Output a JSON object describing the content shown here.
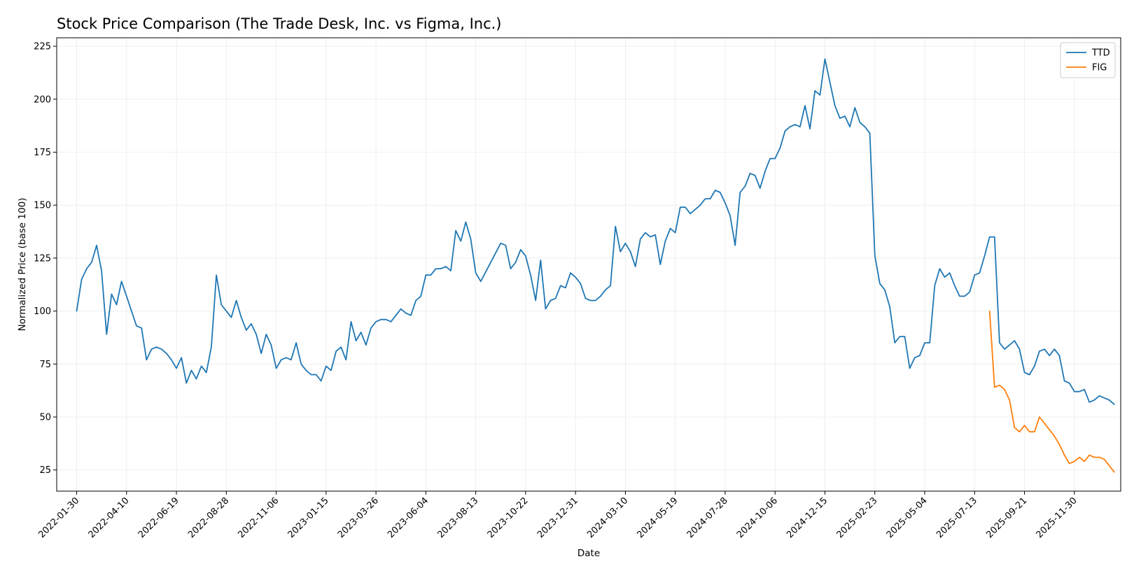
{
  "chart_data": {
    "type": "line",
    "title": "Stock Price Comparison (The Trade Desk, Inc. vs Figma, Inc.)",
    "xlabel": "Date",
    "ylabel": "Normalized Price (base 100)",
    "x_range": [
      "2022-01-02",
      "2026-02-03"
    ],
    "ylim": [
      15,
      229
    ],
    "grid": true,
    "legend_position": "top-right",
    "x_ticks": [
      "2022-01-30",
      "2022-04-10",
      "2022-06-19",
      "2022-08-28",
      "2022-11-06",
      "2023-01-15",
      "2023-03-26",
      "2023-06-04",
      "2023-08-13",
      "2023-10-22",
      "2023-12-31",
      "2024-03-10",
      "2024-05-19",
      "2024-07-28",
      "2024-10-06",
      "2024-12-15",
      "2025-02-23",
      "2025-05-04",
      "2025-07-13",
      "2025-09-21",
      "2025-11-30"
    ],
    "y_ticks": [
      25,
      50,
      75,
      100,
      125,
      150,
      175,
      200,
      225
    ],
    "series": [
      {
        "name": "TTD",
        "color": "#1f77b4",
        "points": [
          [
            "2022-01-30",
            100
          ],
          [
            "2022-02-06",
            115
          ],
          [
            "2022-02-13",
            120
          ],
          [
            "2022-02-20",
            123
          ],
          [
            "2022-02-27",
            131
          ],
          [
            "2022-03-06",
            119
          ],
          [
            "2022-03-13",
            89
          ],
          [
            "2022-03-20",
            108
          ],
          [
            "2022-03-27",
            103
          ],
          [
            "2022-04-03",
            114
          ],
          [
            "2022-04-10",
            107
          ],
          [
            "2022-04-17",
            100
          ],
          [
            "2022-04-24",
            93
          ],
          [
            "2022-05-01",
            92
          ],
          [
            "2022-05-08",
            77
          ],
          [
            "2022-05-15",
            82
          ],
          [
            "2022-05-22",
            83
          ],
          [
            "2022-05-29",
            82
          ],
          [
            "2022-06-05",
            80
          ],
          [
            "2022-06-12",
            77
          ],
          [
            "2022-06-19",
            73
          ],
          [
            "2022-06-26",
            78
          ],
          [
            "2022-07-03",
            66
          ],
          [
            "2022-07-10",
            72
          ],
          [
            "2022-07-17",
            68
          ],
          [
            "2022-07-24",
            74
          ],
          [
            "2022-07-31",
            71
          ],
          [
            "2022-08-07",
            83
          ],
          [
            "2022-08-14",
            117
          ],
          [
            "2022-08-21",
            103
          ],
          [
            "2022-08-28",
            100
          ],
          [
            "2022-09-04",
            97
          ],
          [
            "2022-09-11",
            105
          ],
          [
            "2022-09-18",
            97
          ],
          [
            "2022-09-25",
            91
          ],
          [
            "2022-10-02",
            94
          ],
          [
            "2022-10-09",
            89
          ],
          [
            "2022-10-16",
            80
          ],
          [
            "2022-10-23",
            89
          ],
          [
            "2022-10-30",
            84
          ],
          [
            "2022-11-06",
            73
          ],
          [
            "2022-11-13",
            77
          ],
          [
            "2022-11-20",
            78
          ],
          [
            "2022-11-27",
            77
          ],
          [
            "2022-12-04",
            85
          ],
          [
            "2022-12-11",
            75
          ],
          [
            "2022-12-18",
            72
          ],
          [
            "2022-12-25",
            70
          ],
          [
            "2023-01-01",
            70
          ],
          [
            "2023-01-08",
            67
          ],
          [
            "2023-01-15",
            74
          ],
          [
            "2023-01-22",
            72
          ],
          [
            "2023-01-29",
            81
          ],
          [
            "2023-02-05",
            83
          ],
          [
            "2023-02-12",
            77
          ],
          [
            "2023-02-19",
            95
          ],
          [
            "2023-02-26",
            86
          ],
          [
            "2023-03-05",
            90
          ],
          [
            "2023-03-12",
            84
          ],
          [
            "2023-03-19",
            92
          ],
          [
            "2023-03-26",
            95
          ],
          [
            "2023-04-02",
            96
          ],
          [
            "2023-04-09",
            96
          ],
          [
            "2023-04-16",
            95
          ],
          [
            "2023-04-23",
            98
          ],
          [
            "2023-04-30",
            101
          ],
          [
            "2023-05-07",
            99
          ],
          [
            "2023-05-14",
            98
          ],
          [
            "2023-05-21",
            105
          ],
          [
            "2023-05-28",
            107
          ],
          [
            "2023-06-04",
            117
          ],
          [
            "2023-06-11",
            117
          ],
          [
            "2023-06-18",
            120
          ],
          [
            "2023-06-25",
            120
          ],
          [
            "2023-07-02",
            121
          ],
          [
            "2023-07-09",
            119
          ],
          [
            "2023-07-16",
            138
          ],
          [
            "2023-07-23",
            133
          ],
          [
            "2023-07-30",
            142
          ],
          [
            "2023-08-06",
            134
          ],
          [
            "2023-08-13",
            118
          ],
          [
            "2023-08-20",
            114
          ],
          [
            "2023-09-17",
            132
          ],
          [
            "2023-09-24",
            131
          ],
          [
            "2023-10-01",
            120
          ],
          [
            "2023-10-08",
            123
          ],
          [
            "2023-10-15",
            129
          ],
          [
            "2023-10-22",
            126
          ],
          [
            "2023-10-29",
            117
          ],
          [
            "2023-11-05",
            105
          ],
          [
            "2023-11-12",
            124
          ],
          [
            "2023-11-19",
            101
          ],
          [
            "2023-11-26",
            105
          ],
          [
            "2023-12-03",
            106
          ],
          [
            "2023-12-10",
            112
          ],
          [
            "2023-12-17",
            111
          ],
          [
            "2023-12-24",
            118
          ],
          [
            "2023-12-31",
            116
          ],
          [
            "2024-01-07",
            113
          ],
          [
            "2024-01-14",
            106
          ],
          [
            "2024-01-21",
            105
          ],
          [
            "2024-01-28",
            105
          ],
          [
            "2024-02-04",
            107
          ],
          [
            "2024-02-11",
            110
          ],
          [
            "2024-02-18",
            112
          ],
          [
            "2024-02-25",
            140
          ],
          [
            "2024-03-03",
            128
          ],
          [
            "2024-03-10",
            132
          ],
          [
            "2024-03-17",
            128
          ],
          [
            "2024-03-24",
            121
          ],
          [
            "2024-03-31",
            134
          ],
          [
            "2024-04-07",
            137
          ],
          [
            "2024-04-14",
            135
          ],
          [
            "2024-04-21",
            136
          ],
          [
            "2024-04-28",
            122
          ],
          [
            "2024-05-05",
            133
          ],
          [
            "2024-05-12",
            139
          ],
          [
            "2024-05-19",
            137
          ],
          [
            "2024-05-26",
            149
          ],
          [
            "2024-06-02",
            149
          ],
          [
            "2024-06-09",
            146
          ],
          [
            "2024-06-16",
            148
          ],
          [
            "2024-06-23",
            150
          ],
          [
            "2024-06-30",
            153
          ],
          [
            "2024-07-07",
            153
          ],
          [
            "2024-07-14",
            157
          ],
          [
            "2024-07-21",
            156
          ],
          [
            "2024-07-28",
            151
          ],
          [
            "2024-08-04",
            145
          ],
          [
            "2024-08-11",
            131
          ],
          [
            "2024-08-18",
            156
          ],
          [
            "2024-08-25",
            159
          ],
          [
            "2024-09-01",
            165
          ],
          [
            "2024-09-08",
            164
          ],
          [
            "2024-09-15",
            158
          ],
          [
            "2024-09-22",
            166
          ],
          [
            "2024-09-29",
            172
          ],
          [
            "2024-10-06",
            172
          ],
          [
            "2024-10-13",
            177
          ],
          [
            "2024-10-20",
            185
          ],
          [
            "2024-10-27",
            187
          ],
          [
            "2024-11-03",
            188
          ],
          [
            "2024-11-10",
            187
          ],
          [
            "2024-11-17",
            197
          ],
          [
            "2024-11-24",
            186
          ],
          [
            "2024-12-01",
            204
          ],
          [
            "2024-12-08",
            202
          ],
          [
            "2024-12-15",
            219
          ],
          [
            "2024-12-22",
            208
          ],
          [
            "2024-12-29",
            197
          ],
          [
            "2025-01-05",
            191
          ],
          [
            "2025-01-12",
            192
          ],
          [
            "2025-01-19",
            187
          ],
          [
            "2025-01-26",
            196
          ],
          [
            "2025-02-02",
            189
          ],
          [
            "2025-02-09",
            187
          ],
          [
            "2025-02-16",
            184
          ],
          [
            "2025-02-23",
            126
          ],
          [
            "2025-03-02",
            113
          ],
          [
            "2025-03-09",
            110
          ],
          [
            "2025-03-16",
            102
          ],
          [
            "2025-03-23",
            85
          ],
          [
            "2025-03-30",
            88
          ],
          [
            "2025-04-06",
            88
          ],
          [
            "2025-04-13",
            73
          ],
          [
            "2025-04-20",
            78
          ],
          [
            "2025-04-27",
            79
          ],
          [
            "2025-05-04",
            85
          ],
          [
            "2025-05-11",
            85
          ],
          [
            "2025-05-18",
            112
          ],
          [
            "2025-05-25",
            120
          ],
          [
            "2025-06-01",
            116
          ],
          [
            "2025-06-08",
            118
          ],
          [
            "2025-06-15",
            112
          ],
          [
            "2025-06-22",
            107
          ],
          [
            "2025-06-29",
            107
          ],
          [
            "2025-07-06",
            109
          ],
          [
            "2025-07-13",
            117
          ],
          [
            "2025-07-20",
            118
          ],
          [
            "2025-07-27",
            126
          ],
          [
            "2025-08-03",
            135
          ],
          [
            "2025-08-10",
            135
          ],
          [
            "2025-08-17",
            85
          ],
          [
            "2025-08-24",
            82
          ],
          [
            "2025-08-31",
            84
          ],
          [
            "2025-09-07",
            86
          ],
          [
            "2025-09-14",
            82
          ],
          [
            "2025-09-21",
            71
          ],
          [
            "2025-09-28",
            70
          ],
          [
            "2025-10-05",
            74
          ],
          [
            "2025-10-12",
            81
          ],
          [
            "2025-10-19",
            82
          ],
          [
            "2025-10-26",
            79
          ],
          [
            "2025-11-02",
            82
          ],
          [
            "2025-11-09",
            79
          ],
          [
            "2025-11-16",
            67
          ],
          [
            "2025-11-23",
            66
          ],
          [
            "2025-11-30",
            62
          ],
          [
            "2025-12-07",
            62
          ],
          [
            "2025-12-14",
            63
          ],
          [
            "2025-12-21",
            57
          ],
          [
            "2025-12-28",
            58
          ],
          [
            "2026-01-04",
            60
          ],
          [
            "2026-01-11",
            59
          ],
          [
            "2026-01-18",
            58
          ],
          [
            "2026-01-25",
            56
          ]
        ]
      },
      {
        "name": "FIG",
        "color": "#ff7f0e",
        "points": [
          [
            "2025-08-03",
            100
          ],
          [
            "2025-08-10",
            64
          ],
          [
            "2025-08-17",
            65
          ],
          [
            "2025-08-24",
            63
          ],
          [
            "2025-08-31",
            58
          ],
          [
            "2025-09-07",
            45
          ],
          [
            "2025-09-14",
            43
          ],
          [
            "2025-09-21",
            46
          ],
          [
            "2025-09-28",
            43
          ],
          [
            "2025-10-05",
            43
          ],
          [
            "2025-10-12",
            50
          ],
          [
            "2025-10-19",
            47
          ],
          [
            "2025-10-26",
            44
          ],
          [
            "2025-11-02",
            41
          ],
          [
            "2025-11-09",
            37
          ],
          [
            "2025-11-16",
            32
          ],
          [
            "2025-11-23",
            28
          ],
          [
            "2025-11-30",
            29
          ],
          [
            "2025-12-07",
            31
          ],
          [
            "2025-12-14",
            29
          ],
          [
            "2025-12-21",
            32
          ],
          [
            "2025-12-28",
            31
          ],
          [
            "2026-01-04",
            31
          ],
          [
            "2026-01-11",
            30
          ],
          [
            "2026-01-25",
            24
          ]
        ]
      }
    ]
  }
}
